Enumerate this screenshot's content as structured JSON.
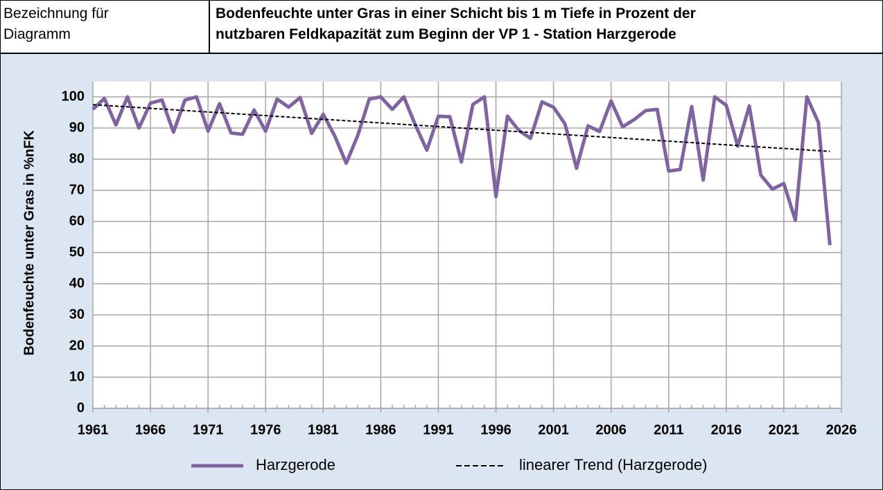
{
  "header": {
    "label_lines": [
      "Bezeichnung für",
      "Diagramm"
    ],
    "title_lines": [
      "Bodenfeuchte unter Gras in einer Schicht bis 1 m Tiefe in Prozent der",
      "nutzbaren Feldkapazität zum Beginn der VP 1  - Station Harzgerode"
    ]
  },
  "chart_data": {
    "type": "line",
    "y_label": "Bodenfeuchte unter Gras in %nFK",
    "x": [
      1961,
      1962,
      1963,
      1964,
      1965,
      1966,
      1967,
      1968,
      1969,
      1970,
      1971,
      1972,
      1973,
      1974,
      1975,
      1976,
      1977,
      1978,
      1979,
      1980,
      1981,
      1982,
      1983,
      1984,
      1985,
      1986,
      1987,
      1988,
      1989,
      1990,
      1991,
      1992,
      1993,
      1994,
      1995,
      1996,
      1997,
      1998,
      1999,
      2000,
      2001,
      2002,
      2003,
      2004,
      2005,
      2006,
      2007,
      2008,
      2009,
      2010,
      2011,
      2012,
      2013,
      2014,
      2015,
      2016,
      2017,
      2018,
      2019,
      2020,
      2021,
      2022,
      2023,
      2024,
      2025
    ],
    "series": [
      {
        "name": "Harzgerode",
        "color": "#8064a2",
        "values": [
          96,
          99.5,
          91,
          100,
          90,
          98,
          99,
          88.7,
          99,
          100,
          89,
          97.8,
          88.4,
          88,
          95.8,
          89,
          99.3,
          96.7,
          99.8,
          88.3,
          94.4,
          87.5,
          78.7,
          87.6,
          99.3,
          100,
          96,
          100,
          91,
          82.9,
          93.8,
          93.6,
          79.1,
          97.6,
          100,
          68,
          93.8,
          89.2,
          86.7,
          98.4,
          96.7,
          91.3,
          77.1,
          90.7,
          88.9,
          98.7,
          90.4,
          92.7,
          95.6,
          96,
          76.2,
          76.7,
          96.9,
          73.3,
          100,
          97.3,
          84.2,
          97.1,
          74.9,
          70.4,
          72.2,
          60.4,
          100,
          91.8,
          52.4
        ]
      },
      {
        "name": "linearer Trend (Harzgerode)",
        "color": "#000000",
        "dashed": true,
        "x": [
          1961,
          2025
        ],
        "values": [
          97.5,
          82.5
        ]
      }
    ],
    "xlim": [
      1961,
      2026
    ],
    "xticks": [
      1961,
      1966,
      1971,
      1976,
      1981,
      1986,
      1991,
      1996,
      2001,
      2006,
      2011,
      2016,
      2021,
      2026
    ],
    "ylim": [
      0,
      100
    ],
    "yticks": [
      0,
      10,
      20,
      30,
      40,
      50,
      60,
      70,
      80,
      90,
      100
    ],
    "grid": true,
    "legend": "bottom"
  }
}
